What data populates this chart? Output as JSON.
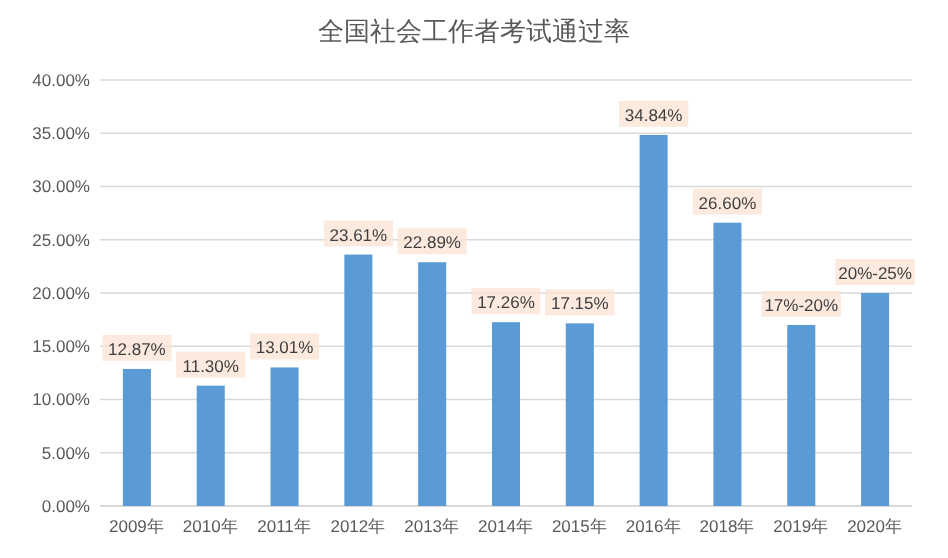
{
  "chart_data": {
    "type": "bar",
    "title": "全国社会工作者考试通过率",
    "categories": [
      "2009年",
      "2010年",
      "2011年",
      "2012年",
      "2013年",
      "2014年",
      "2015年",
      "2016年",
      "2018年",
      "2019年",
      "2020年"
    ],
    "values": [
      12.87,
      11.3,
      13.01,
      23.61,
      22.89,
      17.26,
      17.15,
      34.84,
      26.6,
      17,
      20
    ],
    "value_labels": [
      "12.87%",
      "11.30%",
      "13.01%",
      "23.61%",
      "22.89%",
      "17.26%",
      "17.15%",
      "34.84%",
      "26.60%",
      "17%-20%",
      "20%-25%"
    ],
    "color": "#5b9bd5",
    "ylim": [
      0,
      40
    ],
    "yticks": [
      {
        "value": 0,
        "label": "0.00%"
      },
      {
        "value": 5,
        "label": "5.00%"
      },
      {
        "value": 10,
        "label": "10.00%"
      },
      {
        "value": 15,
        "label": "15.00%"
      },
      {
        "value": 20,
        "label": "20.00%"
      },
      {
        "value": 25,
        "label": "25.00%"
      },
      {
        "value": 30,
        "label": "30.00%"
      },
      {
        "value": 35,
        "label": "35.00%"
      },
      {
        "value": 40,
        "label": "40.00%"
      }
    ],
    "grid": "y"
  }
}
